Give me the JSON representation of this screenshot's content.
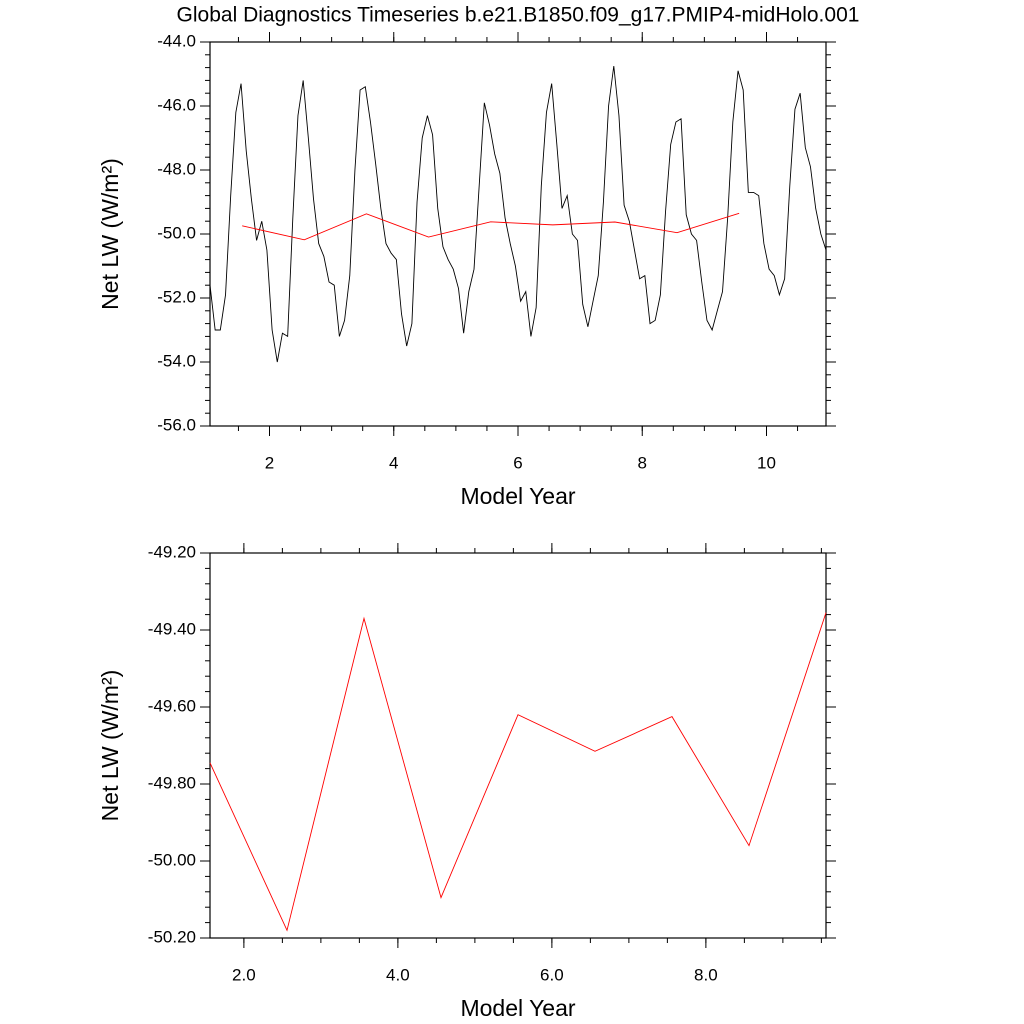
{
  "chart_data": [
    {
      "type": "line",
      "title": "Global Diagnostics Timeseries b.e21.B1850.f09_g17.PMIP4-midHolo.001",
      "xlabel": "Model Year",
      "ylabel": "Net LW (W/m²)",
      "xlim": [
        1.042,
        10.958
      ],
      "ylim": [
        -56,
        -44
      ],
      "xticks": [
        2,
        4,
        6,
        8,
        10
      ],
      "yticks": [
        {
          "value": -56,
          "label": "-56.0"
        },
        {
          "value": -54,
          "label": "-54.0"
        },
        {
          "value": -52,
          "label": "-52.0"
        },
        {
          "value": -50,
          "label": "-50.0"
        },
        {
          "value": -48,
          "label": "-48.0"
        },
        {
          "value": -46,
          "label": "-46.0"
        },
        {
          "value": -44,
          "label": "-44.0"
        }
      ],
      "series": [
        {
          "color": "#000000",
          "x": [
            1.042,
            1.125,
            1.208,
            1.292,
            1.375,
            1.458,
            1.542,
            1.625,
            1.708,
            1.792,
            1.875,
            1.958,
            2.042,
            2.125,
            2.208,
            2.292,
            2.375,
            2.458,
            2.542,
            2.625,
            2.708,
            2.792,
            2.875,
            2.958,
            3.042,
            3.125,
            3.208,
            3.292,
            3.375,
            3.458,
            3.542,
            3.625,
            3.708,
            3.792,
            3.875,
            3.958,
            4.042,
            4.125,
            4.208,
            4.292,
            4.375,
            4.458,
            4.542,
            4.625,
            4.708,
            4.792,
            4.875,
            4.958,
            5.042,
            5.125,
            5.208,
            5.292,
            5.375,
            5.458,
            5.542,
            5.625,
            5.708,
            5.792,
            5.875,
            5.958,
            6.042,
            6.125,
            6.208,
            6.292,
            6.375,
            6.458,
            6.542,
            6.625,
            6.708,
            6.792,
            6.875,
            6.958,
            7.042,
            7.125,
            7.208,
            7.292,
            7.375,
            7.458,
            7.542,
            7.625,
            7.708,
            7.792,
            7.875,
            7.958,
            8.042,
            8.125,
            8.208,
            8.292,
            8.375,
            8.458,
            8.542,
            8.625,
            8.708,
            8.792,
            8.875,
            8.958,
            9.042,
            9.125,
            9.208,
            9.292,
            9.375,
            9.458,
            9.542,
            9.625,
            9.708,
            9.792,
            9.875,
            9.958,
            10.042,
            10.125,
            10.208,
            10.292,
            10.375,
            10.458,
            10.542,
            10.625,
            10.708,
            10.792,
            10.875,
            10.958
          ],
          "values": [
            -51.6,
            -53.0,
            -53.0,
            -51.9,
            -48.8,
            -46.2,
            -45.3,
            -47.4,
            -48.9,
            -50.2,
            -49.6,
            -50.5,
            -53.0,
            -54.0,
            -53.1,
            -53.2,
            -49.5,
            -46.3,
            -45.2,
            -47.0,
            -48.9,
            -50.3,
            -50.7,
            -51.5,
            -51.6,
            -53.2,
            -52.7,
            -51.3,
            -48.0,
            -45.5,
            -45.4,
            -46.5,
            -47.8,
            -49.2,
            -50.3,
            -50.6,
            -50.8,
            -52.5,
            -53.5,
            -52.8,
            -49.0,
            -47.0,
            -46.3,
            -46.9,
            -49.2,
            -50.4,
            -50.8,
            -51.1,
            -51.7,
            -53.1,
            -51.8,
            -51.1,
            -48.5,
            -45.9,
            -46.6,
            -47.5,
            -48.1,
            -49.5,
            -50.3,
            -51.0,
            -52.1,
            -51.8,
            -53.2,
            -52.3,
            -48.5,
            -46.2,
            -45.3,
            -47.2,
            -49.2,
            -48.8,
            -50.0,
            -50.2,
            -52.2,
            -52.9,
            -52.1,
            -51.3,
            -49.0,
            -46.0,
            -44.75,
            -46.3,
            -49.1,
            -49.6,
            -50.5,
            -51.4,
            -51.3,
            -52.8,
            -52.7,
            -51.9,
            -49.3,
            -47.2,
            -46.5,
            -46.4,
            -49.4,
            -50.0,
            -50.2,
            -51.5,
            -52.7,
            -53.0,
            -52.4,
            -51.8,
            -49.5,
            -46.5,
            -44.9,
            -45.5,
            -48.7,
            -48.7,
            -48.8,
            -50.3,
            -51.1,
            -51.3,
            -51.9,
            -51.4,
            -48.5,
            -46.1,
            -45.6,
            -47.3,
            -47.9,
            -49.2,
            -50.0,
            -50.5
          ]
        },
        {
          "color": "#ff0000",
          "x": [
            1.56,
            2.56,
            3.56,
            4.56,
            5.56,
            6.56,
            7.56,
            8.56,
            9.56
          ],
          "values": [
            -49.745,
            -50.18,
            -49.37,
            -50.095,
            -49.62,
            -49.715,
            -49.625,
            -49.96,
            -49.355
          ]
        }
      ]
    },
    {
      "type": "line",
      "xlabel": "Model Year",
      "ylabel": "Net LW (W/m²)",
      "xlim": [
        1.56,
        9.56
      ],
      "ylim": [
        -50.2,
        -49.2
      ],
      "xticks": [
        {
          "value": 2,
          "label": "2.0"
        },
        {
          "value": 4,
          "label": "4.0"
        },
        {
          "value": 6,
          "label": "6.0"
        },
        {
          "value": 8,
          "label": "8.0"
        }
      ],
      "yticks": [
        {
          "value": -50.2,
          "label": "-50.20"
        },
        {
          "value": -50.0,
          "label": "-50.00"
        },
        {
          "value": -49.8,
          "label": "-49.80"
        },
        {
          "value": -49.6,
          "label": "-49.60"
        },
        {
          "value": -49.4,
          "label": "-49.40"
        },
        {
          "value": -49.2,
          "label": "-49.20"
        }
      ],
      "series": [
        {
          "color": "#ff0000",
          "x": [
            1.56,
            2.56,
            3.56,
            4.56,
            5.56,
            6.56,
            7.56,
            8.56,
            9.56
          ],
          "values": [
            -49.745,
            -50.18,
            -49.37,
            -50.095,
            -49.62,
            -49.715,
            -49.625,
            -49.96,
            -49.355
          ]
        }
      ]
    }
  ]
}
